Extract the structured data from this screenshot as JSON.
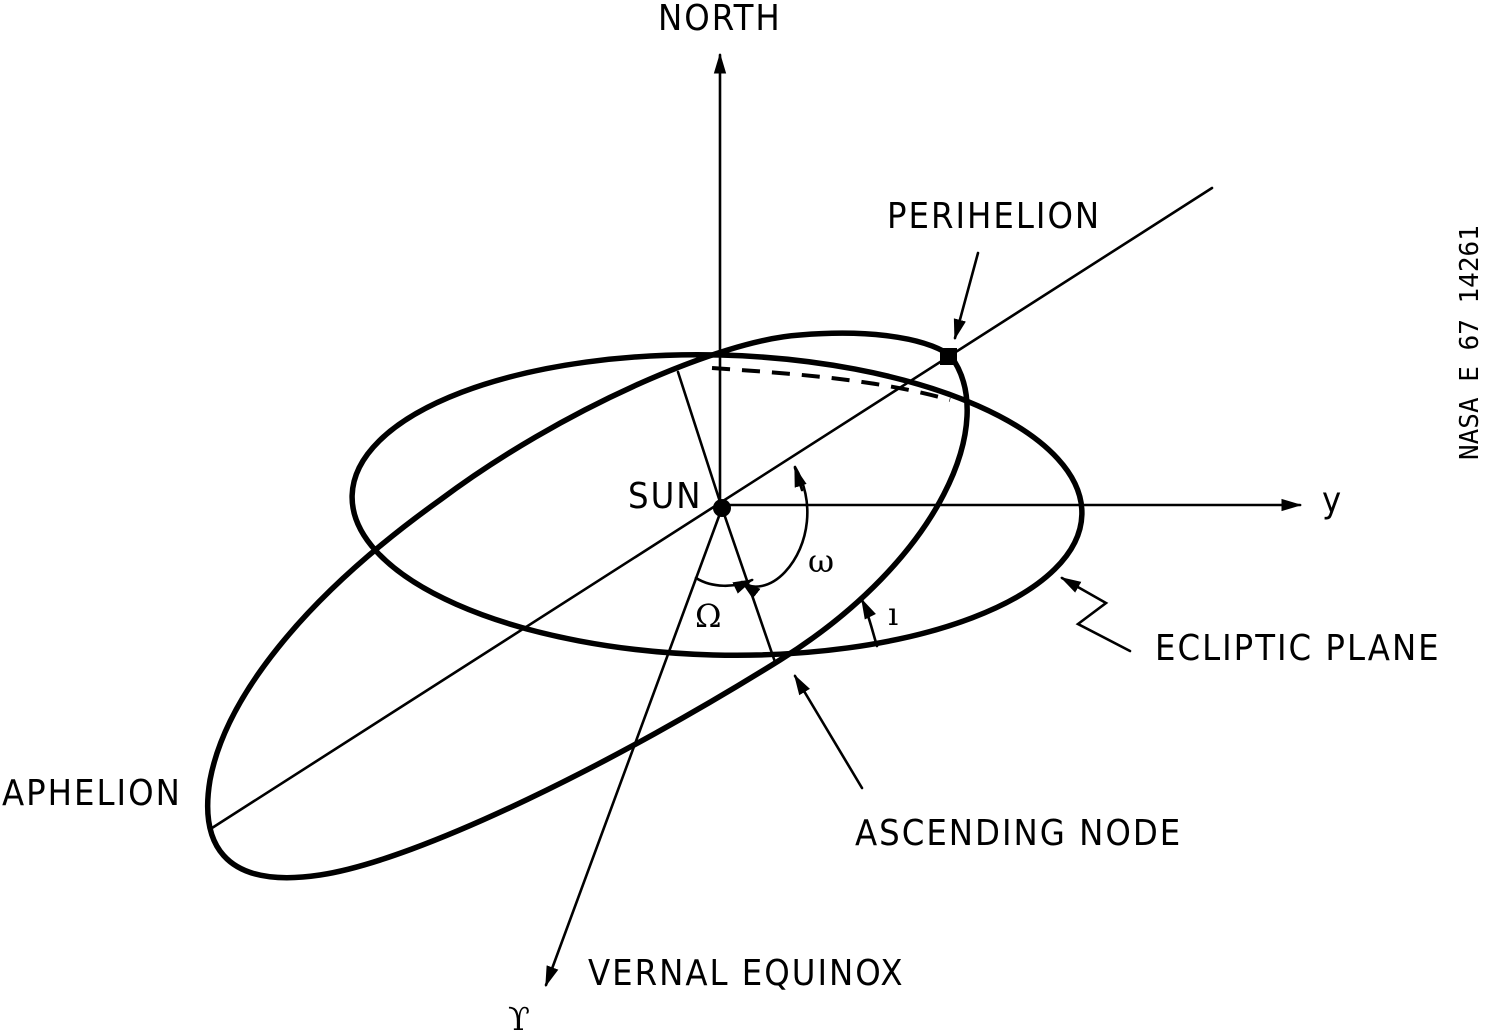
{
  "diagram": {
    "labels": {
      "north": "NORTH",
      "perihelion": "PERIHELION",
      "sun": "SUN",
      "y_axis": "y",
      "omega": "ω",
      "node_longitude": "Ω",
      "inclination": "ı",
      "ecliptic_plane": "ECLIPTIC PLANE",
      "aphelion": "APHELION",
      "ascending_node": "ASCENDING NODE",
      "vernal_equinox": "VERNAL EQUINOX",
      "vernal_symbol": "ϒ",
      "figure_code": "NASA E 67 14261"
    },
    "colors": {
      "ink": "#000000",
      "paper": "#ffffff"
    }
  }
}
